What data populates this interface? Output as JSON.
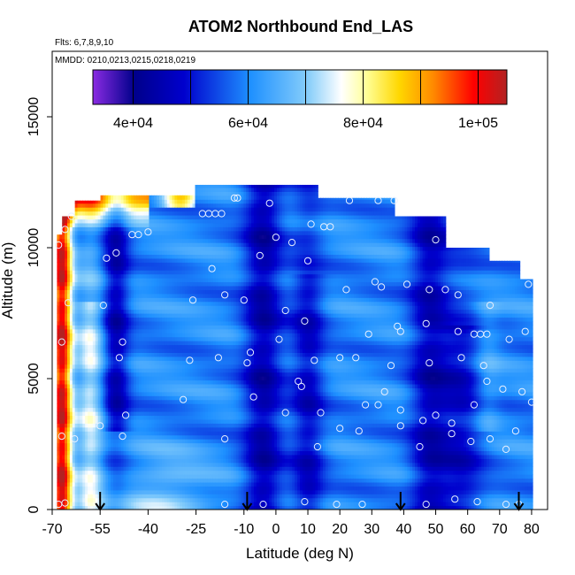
{
  "chart_data": {
    "type": "heatmap",
    "title": "ATOM2 Northbound End_LAS",
    "subtitle_flights": "Flts: 6,7,8,9,10",
    "subtitle_dates": "MMDD: 0210,0213,0215,0218,0219",
    "xlabel": "Latitude (deg N)",
    "ylabel": "Altitude (m)",
    "xlim": [
      -70,
      85
    ],
    "ylim": [
      0,
      17500
    ],
    "x_ticks": [
      -70,
      -55,
      -40,
      -25,
      -10,
      0,
      10,
      20,
      30,
      40,
      50,
      60,
      70,
      80
    ],
    "y_ticks": [
      0,
      5000,
      10000,
      15000
    ],
    "colorbar": {
      "range": [
        33000,
        105000
      ],
      "tick_values": [
        40000,
        60000,
        80000,
        100000
      ],
      "tick_labels": [
        "4e+04",
        "6e+04",
        "8e+04",
        "1e+05"
      ],
      "colors": [
        "#8a2be2",
        "#00008b",
        "#0000cd",
        "#1e90ff",
        "#87cefa",
        "#ffffff",
        "#ffff99",
        "#ffd700",
        "#ff8c00",
        "#ff0000",
        "#b22222"
      ]
    },
    "profile_markers_lat": [
      -55,
      -9,
      39,
      76
    ],
    "observations": [
      {
        "x": -68,
        "y": 200
      },
      {
        "x": -66,
        "y": 250
      },
      {
        "x": -67,
        "y": 2800
      },
      {
        "x": -63,
        "y": 2700
      },
      {
        "x": -67,
        "y": 6400
      },
      {
        "x": -65,
        "y": 7900
      },
      {
        "x": -68,
        "y": 10100
      },
      {
        "x": -66,
        "y": 10700
      },
      {
        "x": -64,
        "y": 11200
      },
      {
        "x": -55,
        "y": 3200
      },
      {
        "x": -54,
        "y": 7800
      },
      {
        "x": -53,
        "y": 9600
      },
      {
        "x": -50,
        "y": 9800
      },
      {
        "x": -48,
        "y": 6400
      },
      {
        "x": -49,
        "y": 5800
      },
      {
        "x": -48,
        "y": 2800
      },
      {
        "x": -47,
        "y": 3600
      },
      {
        "x": -45,
        "y": 10500
      },
      {
        "x": -43,
        "y": 10500
      },
      {
        "x": -40,
        "y": 10600
      },
      {
        "x": -29,
        "y": 4200
      },
      {
        "x": -27,
        "y": 5700
      },
      {
        "x": -26,
        "y": 8000
      },
      {
        "x": -23,
        "y": 11300
      },
      {
        "x": -21,
        "y": 11300
      },
      {
        "x": -19,
        "y": 11300
      },
      {
        "x": -17,
        "y": 11300
      },
      {
        "x": -20,
        "y": 9200
      },
      {
        "x": -18,
        "y": 5800
      },
      {
        "x": -16,
        "y": 8200
      },
      {
        "x": -16,
        "y": 2700
      },
      {
        "x": -16,
        "y": 200
      },
      {
        "x": -13,
        "y": 11900
      },
      {
        "x": -12,
        "y": 11900
      },
      {
        "x": -10,
        "y": 8000
      },
      {
        "x": -9,
        "y": 5600
      },
      {
        "x": -8,
        "y": 6000
      },
      {
        "x": -7,
        "y": 4300
      },
      {
        "x": -5,
        "y": 9700
      },
      {
        "x": -4,
        "y": 200
      },
      {
        "x": -2,
        "y": 11700
      },
      {
        "x": 0,
        "y": 10400
      },
      {
        "x": 1,
        "y": 6500
      },
      {
        "x": 3,
        "y": 7600
      },
      {
        "x": 3,
        "y": 3700
      },
      {
        "x": 5,
        "y": 10200
      },
      {
        "x": 7,
        "y": 4900
      },
      {
        "x": 8,
        "y": 4700
      },
      {
        "x": 9,
        "y": 7200
      },
      {
        "x": 9,
        "y": 300
      },
      {
        "x": 10,
        "y": 9500
      },
      {
        "x": 11,
        "y": 10900
      },
      {
        "x": 12,
        "y": 5700
      },
      {
        "x": 13,
        "y": 2400
      },
      {
        "x": 14,
        "y": 3700
      },
      {
        "x": 15,
        "y": 10800
      },
      {
        "x": 17,
        "y": 10800
      },
      {
        "x": 19,
        "y": 200
      },
      {
        "x": 20,
        "y": 5800
      },
      {
        "x": 20,
        "y": 3100
      },
      {
        "x": 22,
        "y": 8400
      },
      {
        "x": 23,
        "y": 11800
      },
      {
        "x": 25,
        "y": 5800
      },
      {
        "x": 26,
        "y": 3000
      },
      {
        "x": 27,
        "y": 200
      },
      {
        "x": 28,
        "y": 4000
      },
      {
        "x": 29,
        "y": 6700
      },
      {
        "x": 31,
        "y": 8700
      },
      {
        "x": 32,
        "y": 11800
      },
      {
        "x": 32,
        "y": 4000
      },
      {
        "x": 33,
        "y": 8500
      },
      {
        "x": 34,
        "y": 4500
      },
      {
        "x": 36,
        "y": 5500
      },
      {
        "x": 37,
        "y": 11800
      },
      {
        "x": 38,
        "y": 7000
      },
      {
        "x": 39,
        "y": 6800
      },
      {
        "x": 39,
        "y": 3800
      },
      {
        "x": 39,
        "y": 3200
      },
      {
        "x": 41,
        "y": 8600
      },
      {
        "x": 45,
        "y": 2400
      },
      {
        "x": 46,
        "y": 3400
      },
      {
        "x": 47,
        "y": 7100
      },
      {
        "x": 47,
        "y": 200
      },
      {
        "x": 48,
        "y": 5600
      },
      {
        "x": 48,
        "y": 8400
      },
      {
        "x": 50,
        "y": 10300
      },
      {
        "x": 50,
        "y": 3600
      },
      {
        "x": 53,
        "y": 8400
      },
      {
        "x": 55,
        "y": 2900
      },
      {
        "x": 55,
        "y": 3300
      },
      {
        "x": 56,
        "y": 400
      },
      {
        "x": 57,
        "y": 6800
      },
      {
        "x": 57,
        "y": 8200
      },
      {
        "x": 58,
        "y": 5800
      },
      {
        "x": 61,
        "y": 2600
      },
      {
        "x": 62,
        "y": 4000
      },
      {
        "x": 62,
        "y": 6700
      },
      {
        "x": 63,
        "y": 300
      },
      {
        "x": 64,
        "y": 6700
      },
      {
        "x": 65,
        "y": 5500
      },
      {
        "x": 66,
        "y": 6700
      },
      {
        "x": 66,
        "y": 4900
      },
      {
        "x": 67,
        "y": 2700
      },
      {
        "x": 67,
        "y": 7800
      },
      {
        "x": 71,
        "y": 4600
      },
      {
        "x": 72,
        "y": 2300
      },
      {
        "x": 72,
        "y": 200
      },
      {
        "x": 73,
        "y": 6500
      },
      {
        "x": 75,
        "y": 3000
      },
      {
        "x": 76,
        "y": 200
      },
      {
        "x": 77,
        "y": 4500
      },
      {
        "x": 78,
        "y": 6800
      },
      {
        "x": 79,
        "y": 8600
      },
      {
        "x": 80,
        "y": 4100
      }
    ]
  }
}
